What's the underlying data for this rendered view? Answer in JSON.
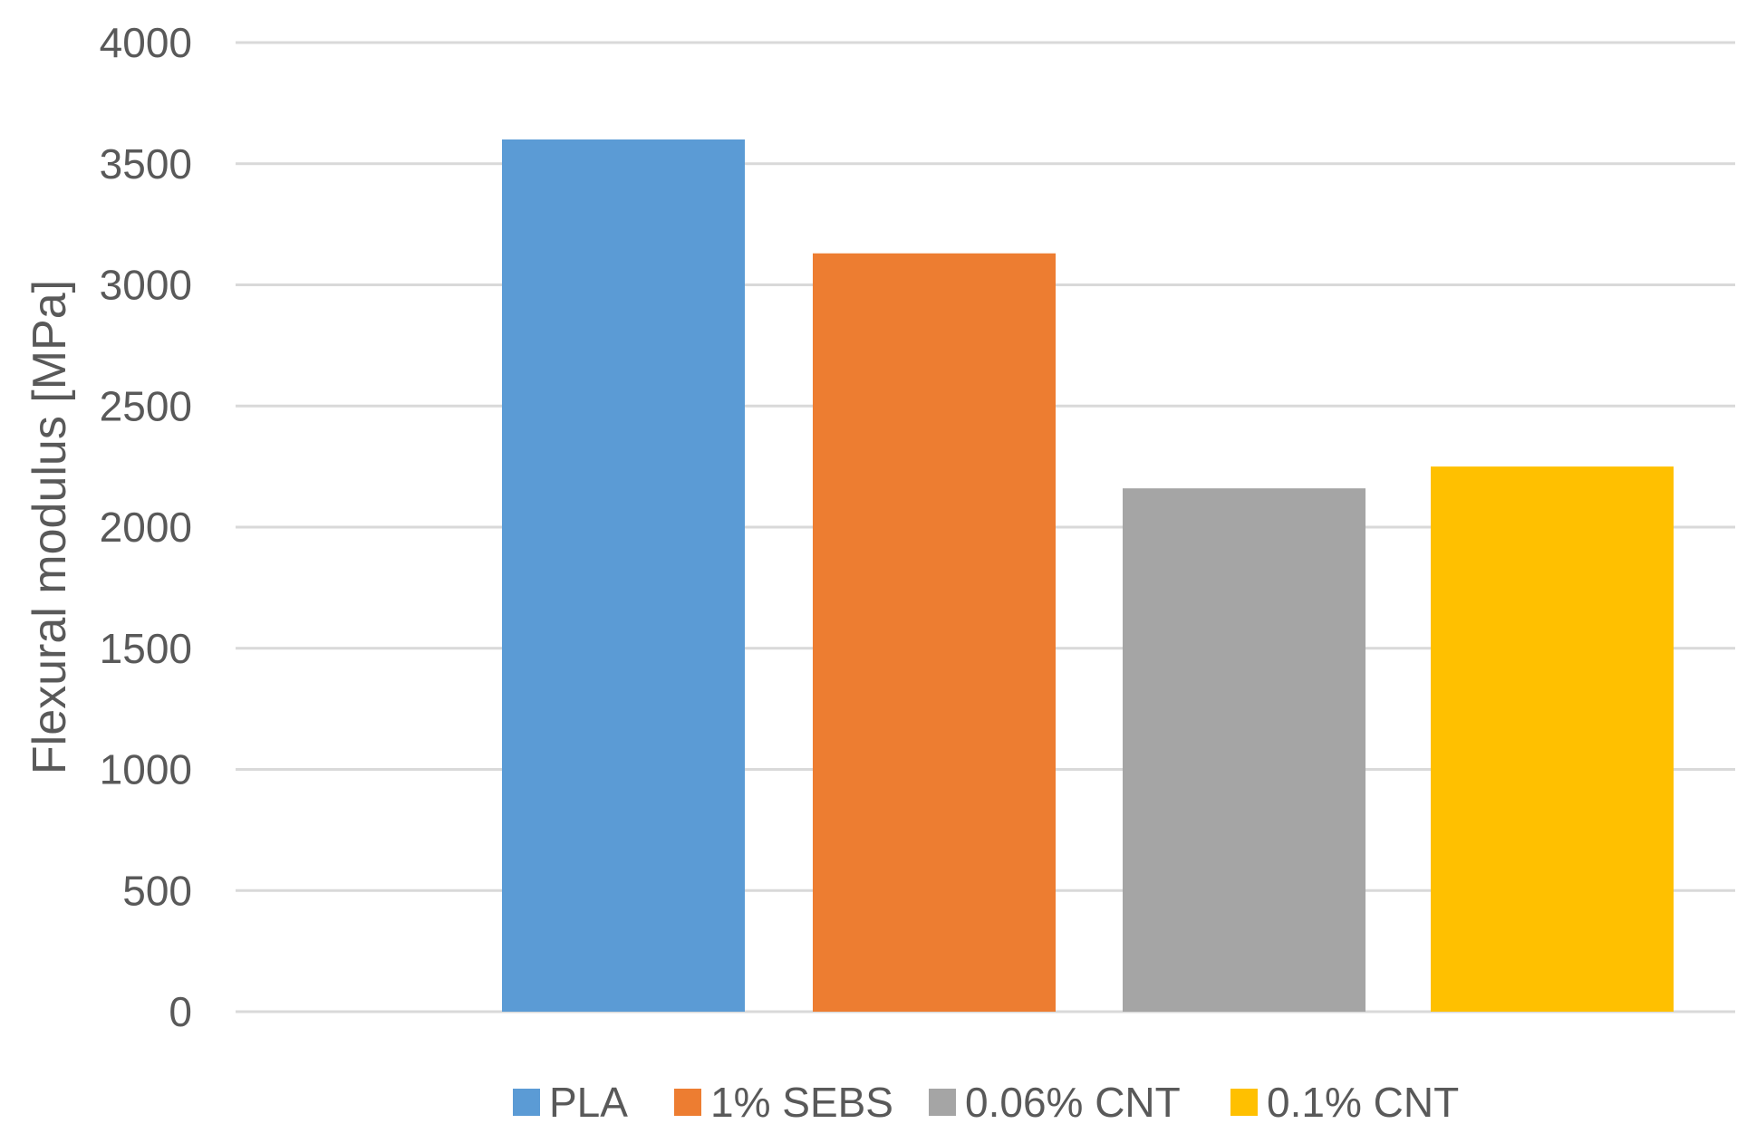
{
  "chart_data": {
    "type": "bar",
    "title": "",
    "xlabel": "",
    "ylabel": "Flexural modulus [MPa]",
    "ylim": [
      0,
      4000
    ],
    "yticks": [
      0,
      500,
      1000,
      1500,
      2000,
      2500,
      3000,
      3500,
      4000
    ],
    "grid": true,
    "legend_position": "bottom",
    "series": [
      {
        "name": "PLA",
        "values": [
          3600
        ],
        "color": "#5B9BD5"
      },
      {
        "name": "1% SEBS",
        "values": [
          3130
        ],
        "color": "#ED7D31"
      },
      {
        "name": "0.06% CNT",
        "values": [
          2160
        ],
        "color": "#A5A5A5"
      },
      {
        "name": "0.1% CNT",
        "values": [
          2250
        ],
        "color": "#FFC000"
      }
    ],
    "gridline_color": "#D9D9D9",
    "text_color": "#595959"
  }
}
